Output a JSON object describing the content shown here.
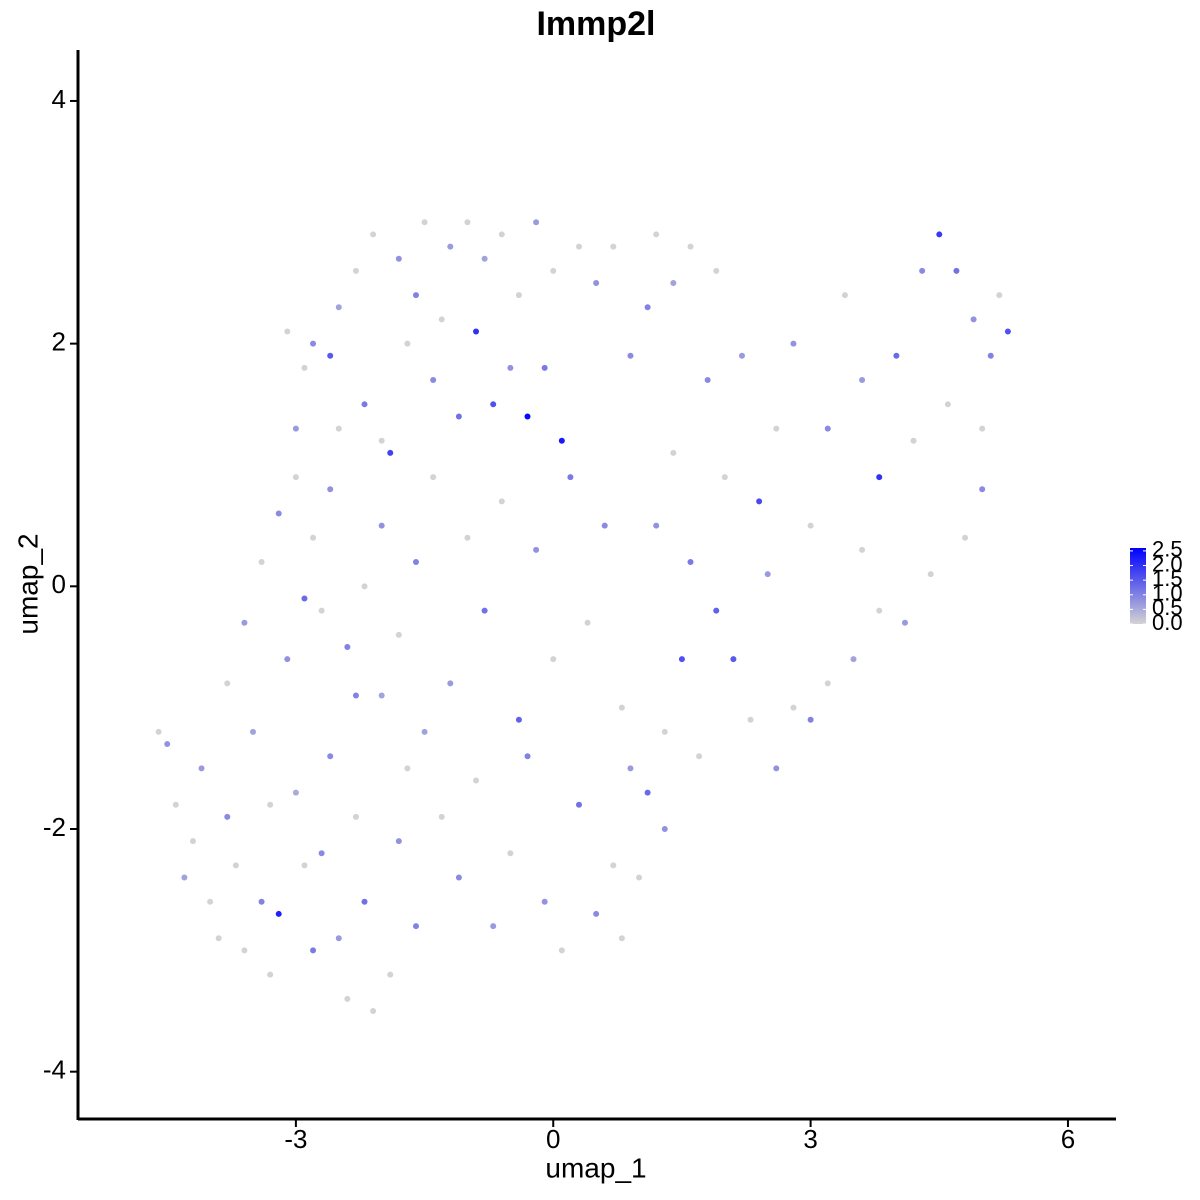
{
  "chart_data": {
    "type": "scatter",
    "title": "Immp2l",
    "x_label": "umap_1",
    "y_label": "umap_2",
    "xlim": [
      -5.54,
      6.56
    ],
    "ylim": [
      -4.39,
      4.42
    ],
    "xticks": [
      -3,
      0,
      3,
      6
    ],
    "yticks": [
      -4,
      -2,
      0,
      2,
      4
    ],
    "color_low": "#d3d3d3",
    "color_high": "#0000ff",
    "colorlim": [
      0,
      2.6
    ],
    "colorbar_ticks": [
      {
        "value": 0,
        "label": "0.0"
      },
      {
        "value": 0.5,
        "label": "0.5"
      },
      {
        "value": 1,
        "label": "1.0"
      },
      {
        "value": 1.5,
        "label": "1.5"
      },
      {
        "value": 2,
        "label": "2.0"
      },
      {
        "value": 2.5,
        "label": "2.5"
      }
    ],
    "x": [
      -4.6,
      -4.5,
      -4.4,
      -4.2,
      -4.1,
      -4.0,
      -3.9,
      -3.8,
      -3.7,
      -3.6,
      -3.5,
      -3.4,
      -3.3,
      -3.2,
      -3.1,
      -3.0,
      -2.9,
      -2.8,
      -2.7,
      -2.6,
      -2.5,
      -2.4,
      -2.3,
      -2.2,
      -2.1,
      -2.0,
      -1.9,
      -1.8,
      -1.7,
      -1.6,
      -3.8,
      -3.6,
      -3.4,
      -3.2,
      -3.0,
      -2.9,
      -2.8,
      -2.6,
      -2.5,
      -2.4,
      -3.0,
      -2.9,
      -2.8,
      -2.6,
      -2.5,
      -2.3,
      -2.2,
      -2.1,
      -2.0,
      -1.9,
      -1.8,
      -1.7,
      -1.6,
      -1.5,
      -1.4,
      -1.3,
      -1.2,
      -1.1,
      -1.0,
      -0.9,
      -0.8,
      -0.7,
      -0.6,
      -0.5,
      -0.4,
      -0.3,
      -0.2,
      -0.1,
      0.0,
      0.1,
      0.3,
      0.5,
      0.7,
      0.9,
      1.2,
      1.4,
      1.6,
      1.1,
      -2.2,
      -2.0,
      -1.8,
      -1.6,
      -1.4,
      -1.2,
      -1.0,
      -0.8,
      -0.6,
      -0.4,
      -0.2,
      0.0,
      0.2,
      0.4,
      0.6,
      0.8,
      -1.5,
      -1.3,
      -1.1,
      -0.9,
      -0.7,
      -0.5,
      -0.3,
      -0.1,
      0.1,
      0.3,
      0.5,
      0.7,
      0.9,
      1.1,
      1.3,
      1.5,
      1.7,
      1.9,
      2.1,
      2.3,
      2.6,
      2.8,
      3.0,
      3.2,
      3.5,
      3.8,
      1.2,
      1.4,
      1.6,
      1.8,
      2.0,
      2.2,
      2.4,
      2.6,
      2.8,
      3.0,
      3.2,
      3.4,
      3.6,
      3.8,
      4.0,
      4.2,
      4.3,
      4.5,
      4.6,
      4.7,
      4.8,
      4.9,
      5.0,
      5.1,
      5.2,
      5.3,
      4.4,
      4.1,
      3.6,
      5.0,
      1.0,
      1.3,
      0.8,
      -2.7,
      -3.3,
      -4.3,
      -2.3,
      -3.1,
      2.5,
      1.9
    ],
    "y": [
      -1.2,
      -1.3,
      -1.8,
      -2.1,
      -1.5,
      -2.6,
      -2.9,
      -1.9,
      -2.3,
      -3.0,
      -1.2,
      -2.6,
      -3.2,
      -2.7,
      -0.6,
      -1.7,
      -2.3,
      -3.0,
      -0.2,
      -1.4,
      -2.9,
      -3.4,
      -1.9,
      -2.6,
      -3.5,
      -0.9,
      -3.2,
      -2.1,
      -1.5,
      -2.8,
      -0.8,
      -0.3,
      0.2,
      0.6,
      0.9,
      -0.1,
      0.4,
      0.8,
      1.3,
      -0.5,
      1.3,
      1.8,
      2.0,
      1.9,
      2.3,
      2.6,
      1.5,
      2.9,
      1.2,
      1.1,
      2.7,
      2.0,
      2.4,
      3.0,
      1.7,
      2.2,
      2.8,
      1.4,
      3.0,
      2.1,
      2.7,
      1.5,
      2.9,
      1.8,
      2.4,
      1.4,
      3.0,
      1.8,
      2.6,
      1.2,
      2.8,
      2.5,
      2.8,
      1.9,
      2.9,
      2.5,
      2.8,
      2.3,
      0.0,
      0.5,
      -0.4,
      0.2,
      0.9,
      -0.8,
      0.4,
      -0.2,
      0.7,
      -1.1,
      0.3,
      -0.6,
      0.9,
      -0.3,
      0.5,
      -1.0,
      -1.2,
      -1.9,
      -2.4,
      -1.6,
      -2.8,
      -2.2,
      -1.4,
      -2.6,
      -3.0,
      -1.8,
      -2.7,
      -2.3,
      -1.5,
      -1.7,
      -1.2,
      -0.6,
      -1.4,
      -0.2,
      -0.6,
      -1.1,
      -1.5,
      -1.0,
      -1.1,
      -0.8,
      -0.6,
      -0.2,
      0.5,
      1.1,
      0.2,
      1.7,
      0.9,
      1.9,
      0.7,
      1.3,
      2.0,
      0.5,
      1.3,
      2.4,
      1.7,
      0.9,
      1.9,
      1.2,
      2.6,
      2.9,
      1.5,
      2.6,
      0.4,
      2.2,
      1.3,
      1.9,
      2.4,
      2.1,
      0.1,
      -0.3,
      0.3,
      0.8,
      -2.4,
      -2.0,
      -2.9,
      -2.2,
      -1.8,
      -2.4,
      -0.9,
      2.1,
      0.1,
      2.6
    ],
    "values": [
      0,
      0.8,
      0,
      0,
      0.7,
      0,
      0,
      0.9,
      0,
      0,
      0.6,
      1.0,
      0,
      2.2,
      0.8,
      0.5,
      0,
      1.1,
      0,
      0.9,
      0.7,
      0,
      0,
      1.2,
      0,
      0.6,
      0,
      0.8,
      0,
      1.0,
      0,
      0.7,
      0,
      0.9,
      0,
      1.3,
      0,
      0.8,
      0,
      1.0,
      0.7,
      0,
      0.9,
      1.5,
      0.6,
      0,
      1.1,
      0,
      0,
      1.8,
      0.8,
      0,
      1.0,
      0,
      0.9,
      0,
      0.7,
      1.2,
      0,
      2.0,
      0.6,
      1.6,
      0,
      0.8,
      0,
      2.5,
      0.7,
      1.1,
      0,
      2.3,
      0,
      0.8,
      0,
      0.9,
      0,
      0.6,
      0,
      1.0,
      0,
      0.8,
      0,
      1.0,
      0,
      0.7,
      0,
      1.2,
      0,
      1.4,
      0.8,
      0,
      1.1,
      0,
      0.9,
      0,
      0.6,
      0,
      0.9,
      0,
      0.7,
      0,
      1.0,
      0.8,
      0,
      1.2,
      0.9,
      0,
      0.7,
      1.3,
      0,
      1.6,
      0,
      1.4,
      1.5,
      0,
      0.8,
      0,
      1.0,
      0,
      0.6,
      0,
      0.8,
      0,
      1.1,
      0.9,
      0,
      0.7,
      1.7,
      0,
      0.8,
      0,
      0.9,
      0,
      0.7,
      2.0,
      1.3,
      0,
      0.9,
      1.9,
      0,
      1.2,
      0,
      0.8,
      0,
      1.0,
      0,
      1.6,
      0,
      0.7,
      0,
      0.9,
      0,
      0.8,
      0,
      0.9,
      0,
      0.6,
      1.0,
      0,
      0.7,
      0
    ]
  }
}
